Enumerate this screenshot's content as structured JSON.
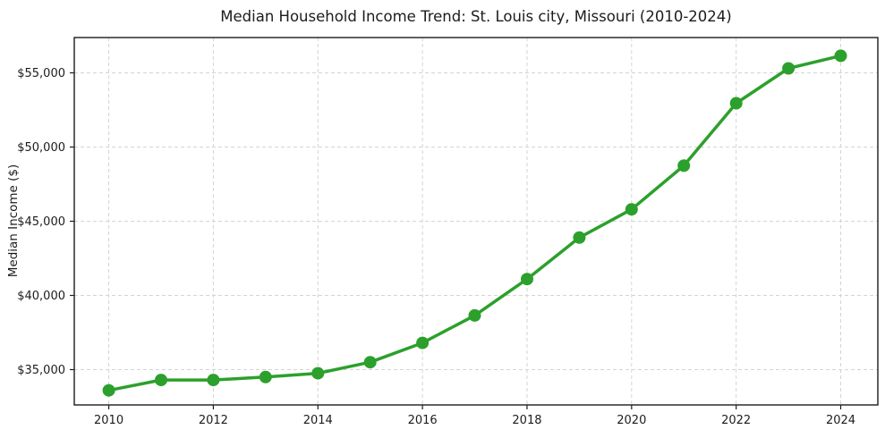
{
  "chart_data": {
    "type": "line",
    "title": "Median Household Income Trend: St. Louis city, Missouri (2010-2024)",
    "xlabel": "",
    "ylabel": "Median Income ($)",
    "series": [
      {
        "name": "Median Household Income",
        "x": [
          2010,
          2011,
          2012,
          2013,
          2014,
          2015,
          2016,
          2017,
          2018,
          2019,
          2020,
          2021,
          2022,
          2023,
          2024
        ],
        "values": [
          33600,
          34300,
          34300,
          34500,
          34750,
          35500,
          36800,
          38650,
          41100,
          43900,
          45800,
          48750,
          52950,
          55300,
          56150
        ]
      }
    ],
    "xlim": [
      2009.34,
      2024.71
    ],
    "ylim": [
      32620,
      57380
    ],
    "x_ticks": [
      2010,
      2012,
      2014,
      2016,
      2018,
      2020,
      2022,
      2024
    ],
    "x_tick_labels": [
      "2010",
      "2012",
      "2014",
      "2016",
      "2018",
      "2020",
      "2022",
      "2024"
    ],
    "y_ticks": [
      35000,
      40000,
      45000,
      50000,
      55000
    ],
    "y_tick_labels": [
      "$35,000",
      "$40,000",
      "$45,000",
      "$50,000",
      "$55,000"
    ],
    "grid": true,
    "grid_style": "dashed",
    "legend": "none",
    "colors": {
      "line": "#2ca02c",
      "marker": "#2ca02c",
      "grid": "#d4d4d4",
      "spine": "#1c1c1c",
      "text": "#1c1c1c",
      "background": "#ffffff"
    }
  }
}
